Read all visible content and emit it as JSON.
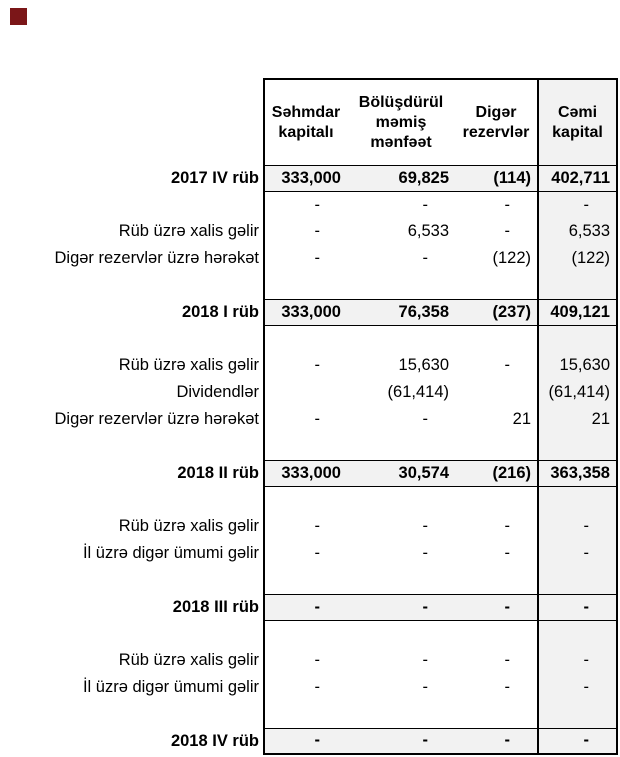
{
  "page": {
    "background": "#ffffff",
    "marker_color": "#7b1618",
    "shaded_fill": "#f2f2f2",
    "border_color": "#000000",
    "text_color": "#000000"
  },
  "table": {
    "columns": [
      {
        "label": "Səhmdar\nkapitalı"
      },
      {
        "label": "Bölüşdürül\nməmiş\nmənfəət"
      },
      {
        "label": "Digər\nrezervlər"
      },
      {
        "label": "Cəmi\nkapital"
      }
    ],
    "rows": [
      {
        "type": "period",
        "label": "2017 IV rüb",
        "values": [
          "333,000",
          "69,825",
          "(114)",
          "402,711"
        ]
      },
      {
        "type": "item",
        "label": "",
        "values": [
          "-",
          "-",
          "-",
          "-"
        ]
      },
      {
        "type": "item",
        "label": "Rüb üzrə xalis gəlir",
        "values": [
          "-",
          "6,533",
          "-",
          "6,533"
        ]
      },
      {
        "type": "item",
        "label": "Digər rezervlər üzrə hərəkət",
        "values": [
          "-",
          "-",
          "(122)",
          "(122)"
        ]
      },
      {
        "type": "spacer",
        "label": "",
        "values": [
          "",
          "",
          "",
          ""
        ]
      },
      {
        "type": "period",
        "label": "2018 I rüb",
        "values": [
          "333,000",
          "76,358",
          "(237)",
          "409,121"
        ]
      },
      {
        "type": "spacer",
        "label": "",
        "values": [
          "",
          "",
          "",
          ""
        ]
      },
      {
        "type": "item",
        "label": "Rüb üzrə xalis gəlir",
        "values": [
          "-",
          "15,630",
          "-",
          "15,630"
        ]
      },
      {
        "type": "item",
        "label": "Dividendlər",
        "values": [
          "",
          "(61,414)",
          "",
          "(61,414)"
        ]
      },
      {
        "type": "item",
        "label": "Digər rezervlər üzrə hərəkət",
        "values": [
          "-",
          "-",
          "21",
          "21"
        ]
      },
      {
        "type": "spacer",
        "label": "",
        "values": [
          "",
          "",
          "",
          ""
        ]
      },
      {
        "type": "period",
        "label": "2018 II rüb",
        "values": [
          "333,000",
          "30,574",
          "(216)",
          "363,358"
        ]
      },
      {
        "type": "spacer",
        "label": "",
        "values": [
          "",
          "",
          "",
          ""
        ]
      },
      {
        "type": "item",
        "label": "Rüb üzrə xalis gəlir",
        "values": [
          "-",
          "-",
          "-",
          "-"
        ]
      },
      {
        "type": "item",
        "label": "İl üzrə digər ümumi gəlir",
        "values": [
          "-",
          "-",
          "-",
          "-"
        ]
      },
      {
        "type": "spacer",
        "label": "",
        "values": [
          "",
          "",
          "",
          ""
        ]
      },
      {
        "type": "period",
        "label": "2018 III rüb",
        "values": [
          "-",
          "-",
          "-",
          "-"
        ]
      },
      {
        "type": "spacer",
        "label": "",
        "values": [
          "",
          "",
          "",
          ""
        ]
      },
      {
        "type": "item",
        "label": "Rüb üzrə xalis gəlir",
        "values": [
          "-",
          "-",
          "-",
          "-"
        ]
      },
      {
        "type": "item",
        "label": "İl üzrə digər ümumi gəlir",
        "values": [
          "-",
          "-",
          "-",
          "-"
        ]
      },
      {
        "type": "spacer",
        "label": "",
        "values": [
          "",
          "",
          "",
          ""
        ]
      },
      {
        "type": "period",
        "label": "2018 IV rüb",
        "values": [
          "-",
          "-",
          "-",
          "-"
        ]
      }
    ]
  }
}
